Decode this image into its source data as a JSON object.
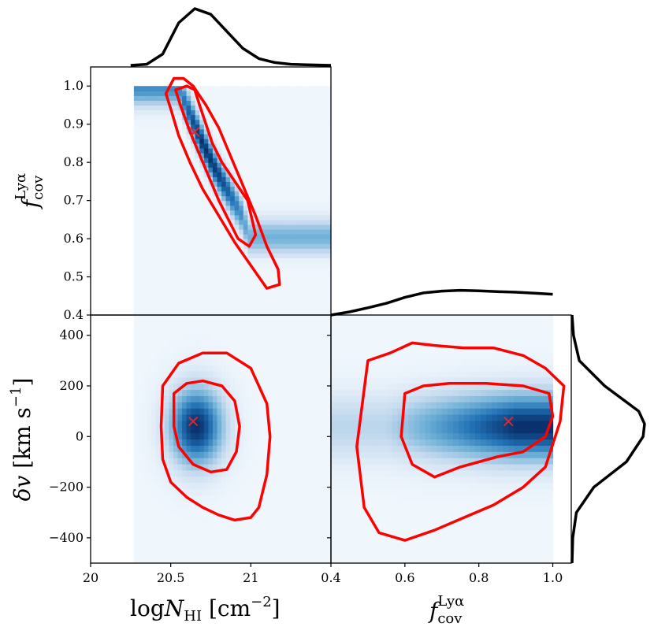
{
  "chart_data": [
    {
      "type": "heatmap",
      "panel": "top-left",
      "xlabel": "logN_HI [cm^-2]",
      "ylabel": "f_cov^Lyα",
      "xlim": [
        20,
        21.5
      ],
      "ylim": [
        0.4,
        1.05
      ],
      "xticks": [],
      "yticks": [
        "0.4",
        "0.5",
        "0.6",
        "0.7",
        "0.8",
        "0.9",
        "1.0"
      ],
      "best_fit": {
        "x": 20.65,
        "y": 0.88
      },
      "ridge": {
        "x": [
          20.55,
          20.62,
          20.7,
          20.78,
          20.86,
          20.94,
          20.99
        ],
        "y": [
          1.0,
          0.93,
          0.85,
          0.78,
          0.72,
          0.66,
          0.6
        ]
      },
      "contour_inner": {
        "x": [
          20.53,
          20.6,
          20.65,
          20.68,
          20.72,
          20.76,
          20.82,
          20.9,
          20.98,
          21.03,
          20.99,
          20.92,
          20.86,
          20.8,
          20.74,
          20.68,
          20.62,
          20.56,
          20.53
        ],
        "y": [
          0.99,
          1.0,
          0.99,
          0.95,
          0.9,
          0.85,
          0.8,
          0.75,
          0.7,
          0.61,
          0.58,
          0.6,
          0.65,
          0.7,
          0.76,
          0.82,
          0.88,
          0.95,
          0.99
        ]
      },
      "contour_outer": {
        "x": [
          20.47,
          20.52,
          20.58,
          20.64,
          20.72,
          20.8,
          20.87,
          20.95,
          21.03,
          21.1,
          21.17,
          21.18,
          21.1,
          21.0,
          20.9,
          20.8,
          20.7,
          20.62,
          20.55,
          20.5,
          20.47
        ],
        "y": [
          0.98,
          1.02,
          1.02,
          1.0,
          0.95,
          0.89,
          0.82,
          0.74,
          0.66,
          0.58,
          0.52,
          0.48,
          0.47,
          0.53,
          0.59,
          0.66,
          0.73,
          0.8,
          0.87,
          0.94,
          0.98
        ]
      }
    },
    {
      "type": "heatmap",
      "panel": "bottom-left",
      "xlabel": "logN_HI [cm^-2]",
      "ylabel": "δv [km s^-1]",
      "xlim": [
        20,
        21.5
      ],
      "ylim": [
        -500,
        480
      ],
      "xticks": [
        "20",
        "20.5",
        "21"
      ],
      "yticks": [
        "−400",
        "−200",
        "0",
        "200",
        "400"
      ],
      "best_fit": {
        "x": 20.64,
        "y": 60
      },
      "contour_inner": {
        "x": [
          20.52,
          20.6,
          20.7,
          20.82,
          20.9,
          20.93,
          20.91,
          20.85,
          20.75,
          20.64,
          20.55,
          20.52,
          20.52
        ],
        "y": [
          170,
          210,
          220,
          200,
          140,
          40,
          -60,
          -130,
          -140,
          -110,
          -40,
          40,
          170
        ]
      },
      "contour_outer": {
        "x": [
          20.45,
          20.55,
          20.7,
          20.85,
          21.0,
          21.1,
          21.12,
          21.1,
          21.05,
          21.0,
          20.9,
          20.8,
          20.7,
          20.6,
          20.5,
          20.45,
          20.44,
          20.45
        ],
        "y": [
          200,
          290,
          330,
          330,
          270,
          130,
          0,
          -150,
          -280,
          -320,
          -330,
          -310,
          -280,
          -240,
          -180,
          -90,
          40,
          200
        ]
      }
    },
    {
      "type": "heatmap",
      "panel": "bottom-right",
      "xlabel": "f_cov^Lyα",
      "xlim": [
        0.4,
        1.05
      ],
      "ylim": [
        -500,
        480
      ],
      "xticks": [
        "0.4",
        "0.6",
        "0.8",
        "1.0"
      ],
      "yticks": [],
      "best_fit": {
        "x": 0.88,
        "y": 60
      },
      "contour_inner": {
        "x": [
          0.6,
          0.65,
          0.72,
          0.82,
          0.92,
          0.99,
          1.0,
          0.98,
          0.92,
          0.85,
          0.75,
          0.68,
          0.62,
          0.59,
          0.6
        ],
        "y": [
          170,
          200,
          210,
          210,
          200,
          170,
          80,
          0,
          -60,
          -80,
          -120,
          -160,
          -110,
          0,
          170
        ]
      },
      "contour_outer": {
        "x": [
          0.5,
          0.56,
          0.62,
          0.68,
          0.76,
          0.84,
          0.92,
          0.98,
          1.03,
          1.02,
          0.98,
          0.92,
          0.84,
          0.76,
          0.68,
          0.6,
          0.53,
          0.49,
          0.47,
          0.5
        ],
        "y": [
          300,
          330,
          370,
          360,
          350,
          350,
          320,
          270,
          200,
          60,
          -120,
          -200,
          -270,
          -320,
          -370,
          -410,
          -380,
          -280,
          -40,
          300
        ]
      }
    },
    {
      "type": "line",
      "panel": "marginal-top",
      "x": [
        20.25,
        20.35,
        20.45,
        20.55,
        20.65,
        20.75,
        20.85,
        20.95,
        21.05,
        21.15,
        21.25,
        21.35,
        21.5
      ],
      "y": [
        0.0,
        0.02,
        0.2,
        0.75,
        1.0,
        0.9,
        0.6,
        0.3,
        0.12,
        0.05,
        0.02,
        0.01,
        0.0
      ]
    },
    {
      "type": "line",
      "panel": "marginal-right-top",
      "x": [
        0.4,
        0.45,
        0.5,
        0.55,
        0.6,
        0.65,
        0.7,
        0.75,
        0.8,
        0.85,
        0.9,
        0.95,
        1.0
      ],
      "y": [
        0.0,
        0.12,
        0.28,
        0.45,
        0.68,
        0.85,
        0.92,
        0.95,
        0.93,
        0.9,
        0.88,
        0.84,
        0.8
      ]
    },
    {
      "type": "line",
      "panel": "marginal-right",
      "x": [
        -500,
        -400,
        -300,
        -200,
        -100,
        0,
        50,
        100,
        200,
        300,
        400,
        480
      ],
      "y": [
        0.0,
        0.01,
        0.06,
        0.3,
        0.75,
        0.98,
        1.0,
        0.92,
        0.45,
        0.1,
        0.02,
        0.0
      ]
    }
  ]
}
